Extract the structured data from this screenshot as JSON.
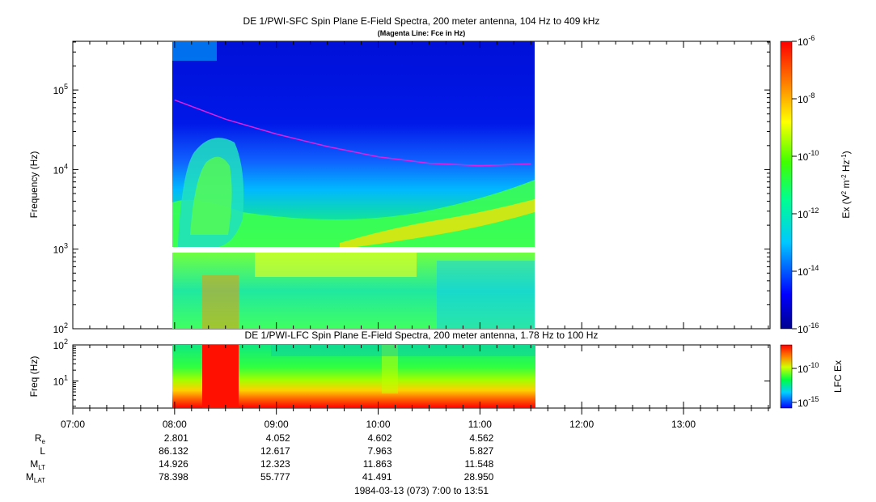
{
  "chart_data": [
    {
      "type": "heatmap",
      "title": "DE 1/PWI-SFC  Spin Plane E-Field Spectra, 200 meter antenna, 104 Hz to 409 kHz",
      "subtitle": "(Magenta Line: Fce in Hz)",
      "ylabel": "Frequency (Hz)",
      "y_scale": "log",
      "ylim": [
        100,
        409000
      ],
      "y_ticks": [
        {
          "value": 100,
          "base": "10",
          "exp": "2"
        },
        {
          "value": 1000,
          "base": "10",
          "exp": "3"
        },
        {
          "value": 10000,
          "base": "10",
          "exp": "4"
        },
        {
          "value": 100000,
          "base": "10",
          "exp": "5"
        }
      ],
      "xlim": [
        "07:00",
        "13:51"
      ],
      "data_coverage": {
        "start": "08:00",
        "end": "11:32"
      },
      "data_gap_hz": [
        950,
        1050
      ],
      "colorbar": {
        "label_base": "Ex (V",
        "label_sup1": "2",
        "label_mid": " m",
        "label_sup2": "-2",
        "label_mid2": " Hz",
        "label_sup3": "-1",
        "label_end": ")",
        "scale": "log",
        "range": [
          1e-16,
          1e-06
        ],
        "ticks": [
          {
            "base": "10",
            "exp": "-6"
          },
          {
            "base": "10",
            "exp": "-8"
          },
          {
            "base": "10",
            "exp": "-10"
          },
          {
            "base": "10",
            "exp": "-12"
          },
          {
            "base": "10",
            "exp": "-14"
          },
          {
            "base": "10",
            "exp": "-16"
          }
        ]
      },
      "fce_line": {
        "color": "#e020e0",
        "x": [
          "08:00",
          "08:30",
          "09:00",
          "09:30",
          "10:00",
          "10:30",
          "11:00",
          "11:30"
        ],
        "y": [
          75000,
          43000,
          28000,
          19500,
          14500,
          12000,
          11200,
          11800
        ]
      }
    },
    {
      "type": "heatmap",
      "title": "DE 1/PWI-LFC  Spin Plane E-Field Spectra, 200 meter antenna, 1.78 Hz to 100 Hz",
      "ylabel": "Freq (Hz)",
      "y_scale": "log",
      "ylim": [
        1.78,
        100
      ],
      "y_ticks": [
        {
          "value": 100,
          "base": "10",
          "exp": "2"
        },
        {
          "value": 10,
          "base": "10",
          "exp": "1"
        }
      ],
      "colorbar": {
        "label": "LFC Ex",
        "scale": "log",
        "ticks": [
          {
            "base": "10",
            "exp": "-10"
          },
          {
            "base": "10",
            "exp": "-15"
          }
        ]
      },
      "data_coverage": {
        "start": "08:00",
        "end": "11:32"
      }
    }
  ],
  "x_axis": {
    "tick_labels": [
      "07:00",
      "08:00",
      "09:00",
      "10:00",
      "11:00",
      "12:00",
      "13:00"
    ],
    "start": "07:00",
    "end": "13:51"
  },
  "ephemeris": {
    "rows": [
      {
        "label_base": "R",
        "label_sub": "e",
        "values": [
          "2.801",
          "4.052",
          "4.602",
          "4.562"
        ]
      },
      {
        "label_base": "L",
        "label_sub": "",
        "values": [
          "86.132",
          "12.617",
          "7.963",
          "5.827"
        ]
      },
      {
        "label_base": "M",
        "label_sub": "LT",
        "values": [
          "14.926",
          "12.323",
          "11.863",
          "11.548"
        ]
      },
      {
        "label_base": "M",
        "label_sub": "LAT",
        "values": [
          "78.398",
          "55.777",
          "41.491",
          "28.950"
        ]
      }
    ],
    "value_times": [
      "08:00",
      "09:00",
      "10:00",
      "11:00"
    ]
  },
  "footer": "1984-03-13 (073) 7:00 to 13:51"
}
